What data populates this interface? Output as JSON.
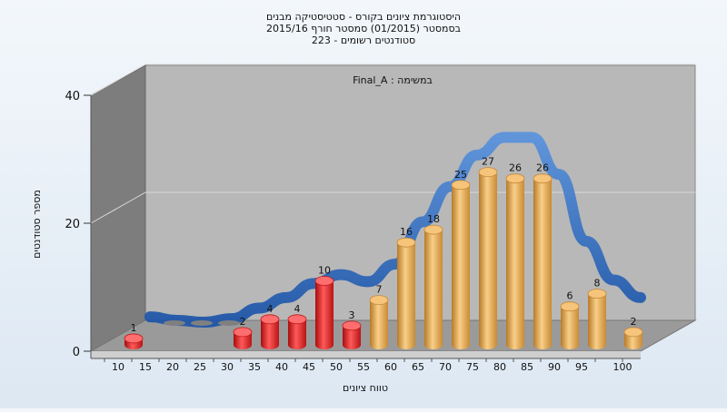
{
  "chart_data": {
    "type": "bar",
    "title_lines": [
      "היסטוגרמת ציונים בקורס - סטטיסטיקה מבנים",
      "בסמסטר  (01/2015)  סמסטר חורף 2015/16",
      "223 - סטודנטים רשומים"
    ],
    "subtitle": "Final_A : במשימה",
    "xlabel": "טווח ציונים",
    "ylabel": "מספר סטודנטים",
    "ylim": [
      0,
      40
    ],
    "yticks": [
      0,
      20,
      40
    ],
    "categories": [
      "10",
      "15",
      "20",
      "25",
      "30",
      "35",
      "40",
      "45",
      "50",
      "55",
      "60",
      "65",
      "70",
      "75",
      "80",
      "85",
      "90",
      "95",
      "100"
    ],
    "values": [
      1,
      0,
      0,
      0,
      2,
      4,
      4,
      10,
      3,
      7,
      16,
      18,
      25,
      27,
      26,
      26,
      6,
      8,
      2
    ],
    "fail_threshold": 55,
    "colors": {
      "fail": "#dd2020",
      "pass": "#e8a848",
      "curve": "#2f6fc4"
    },
    "grid": true,
    "legend": "none"
  }
}
